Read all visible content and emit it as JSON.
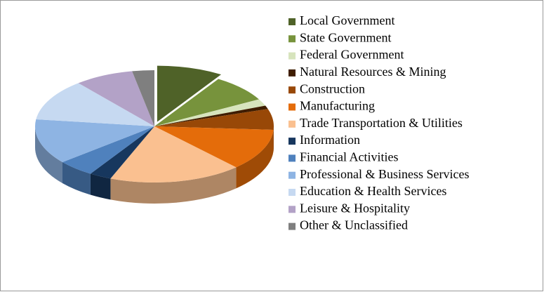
{
  "chart_data": {
    "type": "pie3d",
    "categories": [
      "Local Government",
      "State Government",
      "Federal Government",
      "Natural Resources & Mining",
      "Construction",
      "Manufacturing",
      "Trade Transportation & Utilities",
      "Information",
      "Financial Activities",
      "Professional & Business Services",
      "Education & Health Services",
      "Leisure & Hospitality",
      "Other & Unclassified"
    ],
    "values": [
      9,
      8,
      2,
      1,
      6,
      12,
      18,
      3,
      5,
      13,
      12,
      8,
      3
    ],
    "colors": [
      "#4f6228",
      "#77933c",
      "#d7e4bd",
      "#3f1d00",
      "#984807",
      "#e46c0a",
      "#fac090",
      "#17375e",
      "#4f81bd",
      "#8eb4e3",
      "#c6d9f1",
      "#b3a2c7",
      "#7f7f7f"
    ],
    "exploded": [
      0
    ],
    "legend": "right"
  }
}
